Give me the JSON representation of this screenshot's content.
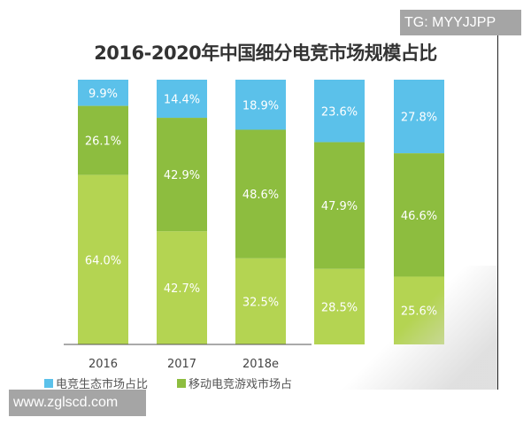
{
  "watermarks": {
    "top": "TG: MYYJJPP",
    "bottom": "www.zglscd.com"
  },
  "chart_data": {
    "type": "bar",
    "stacked": true,
    "title": "2016-2020年中国细分电竞市场规模占比",
    "categories": [
      "2016",
      "2017",
      "2018e",
      "",
      ""
    ],
    "series": [
      {
        "name": "电竞生态市场占比",
        "color": "#5bc1ea",
        "values": [
          9.9,
          14.4,
          18.9,
          23.6,
          27.8
        ]
      },
      {
        "name": "移动电竞游戏市场占",
        "color": "#8dbd3f",
        "values": [
          26.1,
          42.9,
          48.6,
          47.9,
          46.6
        ]
      },
      {
        "color": "#b4d452",
        "values": [
          64.0,
          42.7,
          32.5,
          28.5,
          25.6
        ]
      }
    ],
    "ylim": [
      0,
      100
    ],
    "grid": false,
    "legend": "bottom-left"
  }
}
